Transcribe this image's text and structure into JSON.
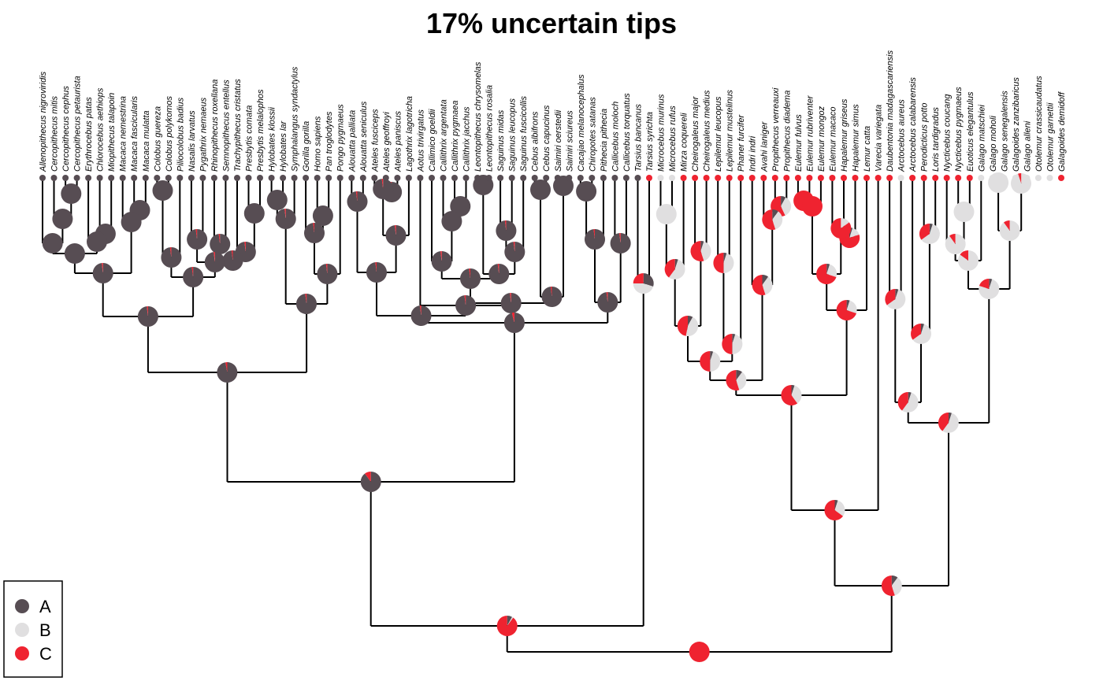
{
  "title": "17% uncertain tips",
  "colors": {
    "A": "#574d53",
    "B": "#e0dfe0",
    "C": "#ef2330"
  },
  "legend": [
    {
      "key": "A",
      "label": "A"
    },
    {
      "key": "B",
      "label": "B"
    },
    {
      "key": "C",
      "label": "C"
    }
  ],
  "tips": [
    {
      "name": "Allenopithecus nigroviridis",
      "state": "A"
    },
    {
      "name": "Cercopithecus mitis",
      "state": "A"
    },
    {
      "name": "Cercopithecus cephus",
      "state": "A"
    },
    {
      "name": "Cercopithecus petaurista",
      "state": "A"
    },
    {
      "name": "Erythrocebus patas",
      "state": "A"
    },
    {
      "name": "Chlorocebus aethiops",
      "state": "A"
    },
    {
      "name": "Miopithecus talapoin",
      "state": "A"
    },
    {
      "name": "Macaca nemestrina",
      "state": "A"
    },
    {
      "name": "Macaca fascicularis",
      "state": "A"
    },
    {
      "name": "Macaca mulatta",
      "state": "A"
    },
    {
      "name": "Colobus guereza",
      "state": "A"
    },
    {
      "name": "Colobus polykomos",
      "state": "A"
    },
    {
      "name": "Piliocolobus badius",
      "state": "A"
    },
    {
      "name": "Nasalis larvatus",
      "state": "A"
    },
    {
      "name": "Pygathrix nemaeus",
      "state": "A"
    },
    {
      "name": "Rhinopithecus roxellana",
      "state": "A"
    },
    {
      "name": "Semnopithecus entellus",
      "state": "A"
    },
    {
      "name": "Trachypithecus cristatus",
      "state": "A"
    },
    {
      "name": "Presbytis comata",
      "state": "A"
    },
    {
      "name": "Presbytis melalophos",
      "state": "A"
    },
    {
      "name": "Hylobates klossii",
      "state": "A"
    },
    {
      "name": "Hylobates lar",
      "state": "A"
    },
    {
      "name": "Symphalangus syndactylus",
      "state": "A"
    },
    {
      "name": "Gorilla gorilla",
      "state": "A"
    },
    {
      "name": "Homo sapiens",
      "state": "A"
    },
    {
      "name": "Pan troglodytes",
      "state": "A"
    },
    {
      "name": "Pongo pygmaeus",
      "state": "A"
    },
    {
      "name": "Alouatta palliata",
      "state": "A"
    },
    {
      "name": "Alouatta seniculus",
      "state": "A"
    },
    {
      "name": "Ateles fusciceps",
      "state": "A"
    },
    {
      "name": "Ateles geoffroyi",
      "state": "A"
    },
    {
      "name": "Ateles paniscus",
      "state": "A"
    },
    {
      "name": "Lagothrix lagotricha",
      "state": "A"
    },
    {
      "name": "Aotus trivirgatus",
      "state": "A"
    },
    {
      "name": "Callimico goeldii",
      "state": "A"
    },
    {
      "name": "Callithrix argentata",
      "state": "A"
    },
    {
      "name": "Callithrix pygmaea",
      "state": "A"
    },
    {
      "name": "Callithrix jacchus",
      "state": "A"
    },
    {
      "name": "Leontopithecus chrysomelas",
      "state": "A"
    },
    {
      "name": "Leontopithecus rosalia",
      "state": "A"
    },
    {
      "name": "Saguinus midas",
      "state": "A"
    },
    {
      "name": "Saguinus leucopus",
      "state": "A"
    },
    {
      "name": "Saguinus fuscicollis",
      "state": "A"
    },
    {
      "name": "Cebus albifrons",
      "state": "A"
    },
    {
      "name": "Cebus capucinus",
      "state": "A"
    },
    {
      "name": "Saimiri oerstedii",
      "state": "A"
    },
    {
      "name": "Saimiri sciureus",
      "state": "A"
    },
    {
      "name": "Cacajao melanocephalus",
      "state": "A"
    },
    {
      "name": "Chiropotes satanas",
      "state": "A"
    },
    {
      "name": "Pithecia pithecia",
      "state": "A"
    },
    {
      "name": "Callicebus moloch",
      "state": "A"
    },
    {
      "name": "Callicebus torquatus",
      "state": "A"
    },
    {
      "name": "Tarsius bancanus",
      "state": "A"
    },
    {
      "name": "Tarsius syrichta",
      "state": "C"
    },
    {
      "name": "Microcebus murinus",
      "state": "B"
    },
    {
      "name": "Microcebus rufus",
      "state": "B"
    },
    {
      "name": "Mirza coquereli",
      "state": "C"
    },
    {
      "name": "Cheirogaleus major",
      "state": "C"
    },
    {
      "name": "Cheirogaleus medius",
      "state": "C"
    },
    {
      "name": "Lepilemur leucopus",
      "state": "C"
    },
    {
      "name": "Lepilemur mustelinus",
      "state": "C"
    },
    {
      "name": "Phaner furcifer",
      "state": "C"
    },
    {
      "name": "Indri indri",
      "state": "C"
    },
    {
      "name": "Avahi laniger",
      "state": "C"
    },
    {
      "name": "Propithecus verreauxi",
      "state": "C"
    },
    {
      "name": "Propithecus diadema",
      "state": "C"
    },
    {
      "name": "Eulemur fulvus",
      "state": "C"
    },
    {
      "name": "Eulemur rubriventer",
      "state": "C"
    },
    {
      "name": "Eulemur mongoz",
      "state": "C"
    },
    {
      "name": "Eulemur macaco",
      "state": "C"
    },
    {
      "name": "Hapalemur griseus",
      "state": "C"
    },
    {
      "name": "Hapalemur simus",
      "state": "C"
    },
    {
      "name": "Lemur catta",
      "state": "C"
    },
    {
      "name": "Varecia variegata",
      "state": "C"
    },
    {
      "name": "Daubentonia madagascariensis",
      "state": "C"
    },
    {
      "name": "Arctocebus aureus",
      "state": "B"
    },
    {
      "name": "Arctocebus calabarensis",
      "state": "C"
    },
    {
      "name": "Perodicticus potto",
      "state": "C"
    },
    {
      "name": "Loris tardigradus",
      "state": "C"
    },
    {
      "name": "Nycticebus coucang",
      "state": "C"
    },
    {
      "name": "Nycticebus pygmaeus",
      "state": "C"
    },
    {
      "name": "Euoticus elegantulus",
      "state": "C"
    },
    {
      "name": "Galago matschiei",
      "state": "B"
    },
    {
      "name": "Galago moholi",
      "state": "B"
    },
    {
      "name": "Galago senegalensis",
      "state": "B"
    },
    {
      "name": "Galagoides zanzibaricus",
      "state": "B"
    },
    {
      "name": "Galago alleni",
      "state": "B"
    },
    {
      "name": "Otolemur crassicaudatus",
      "state": "B"
    },
    {
      "name": "Otolemur garnettii",
      "state": "B"
    },
    {
      "name": "Galagoides demidoff",
      "state": "C"
    }
  ]
}
